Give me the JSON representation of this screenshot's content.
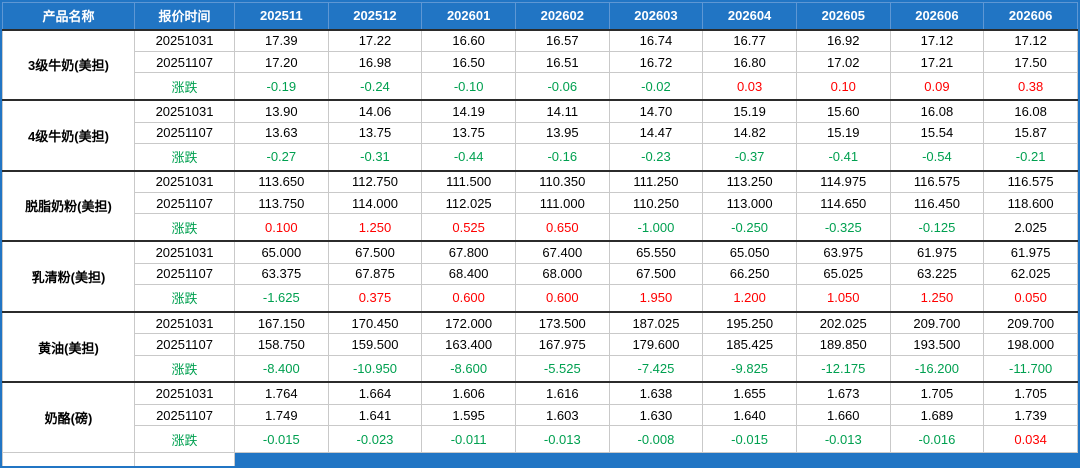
{
  "colors": {
    "header_bg": "#2175C4",
    "header_text": "#FFFFFF",
    "up": "#FF0000",
    "down": "#00A050",
    "neutral": "#000000",
    "grid": "#C9C9C9",
    "divider": "#2B2B2B"
  },
  "chart_data": {
    "type": "table",
    "columns": [
      "产品名称",
      "报价时间",
      "202511",
      "202512",
      "202601",
      "202602",
      "202603",
      "202604",
      "202605",
      "202606",
      "202606"
    ],
    "groups": [
      {
        "product": "3级牛奶(美担)",
        "rows": [
          {
            "label": "20251031",
            "kind": "price",
            "values": [
              "17.39",
              "17.22",
              "16.60",
              "16.57",
              "16.74",
              "16.77",
              "16.92",
              "17.12",
              "17.12"
            ]
          },
          {
            "label": "20251107",
            "kind": "price",
            "values": [
              "17.20",
              "16.98",
              "16.50",
              "16.51",
              "16.72",
              "16.80",
              "17.02",
              "17.21",
              "17.50"
            ]
          },
          {
            "label": "涨跌",
            "kind": "change",
            "values": [
              "-0.19",
              "-0.24",
              "-0.10",
              "-0.06",
              "-0.02",
              "0.03",
              "0.10",
              "0.09",
              "0.38"
            ],
            "color_overrides": {}
          }
        ]
      },
      {
        "product": "4级牛奶(美担)",
        "rows": [
          {
            "label": "20251031",
            "kind": "price",
            "values": [
              "13.90",
              "14.06",
              "14.19",
              "14.11",
              "14.70",
              "15.19",
              "15.60",
              "16.08",
              "16.08"
            ]
          },
          {
            "label": "20251107",
            "kind": "price",
            "values": [
              "13.63",
              "13.75",
              "13.75",
              "13.95",
              "14.47",
              "14.82",
              "15.19",
              "15.54",
              "15.87"
            ]
          },
          {
            "label": "涨跌",
            "kind": "change",
            "values": [
              "-0.27",
              "-0.31",
              "-0.44",
              "-0.16",
              "-0.23",
              "-0.37",
              "-0.41",
              "-0.54",
              "-0.21"
            ],
            "color_overrides": {}
          }
        ]
      },
      {
        "product": "脱脂奶粉(美担)",
        "rows": [
          {
            "label": "20251031",
            "kind": "price",
            "values": [
              "113.650",
              "112.750",
              "111.500",
              "110.350",
              "111.250",
              "113.250",
              "114.975",
              "116.575",
              "116.575"
            ]
          },
          {
            "label": "20251107",
            "kind": "price",
            "values": [
              "113.750",
              "114.000",
              "112.025",
              "111.000",
              "110.250",
              "113.000",
              "114.650",
              "116.450",
              "118.600"
            ]
          },
          {
            "label": "涨跌",
            "kind": "change",
            "values": [
              "0.100",
              "1.250",
              "0.525",
              "0.650",
              "-1.000",
              "-0.250",
              "-0.325",
              "-0.125",
              "2.025"
            ],
            "color_overrides": {
              "8": "neutral"
            }
          }
        ]
      },
      {
        "product": "乳清粉(美担)",
        "rows": [
          {
            "label": "20251031",
            "kind": "price",
            "values": [
              "65.000",
              "67.500",
              "67.800",
              "67.400",
              "65.550",
              "65.050",
              "63.975",
              "61.975",
              "61.975"
            ]
          },
          {
            "label": "20251107",
            "kind": "price",
            "values": [
              "63.375",
              "67.875",
              "68.400",
              "68.000",
              "67.500",
              "66.250",
              "65.025",
              "63.225",
              "62.025"
            ]
          },
          {
            "label": "涨跌",
            "kind": "change",
            "values": [
              "-1.625",
              "0.375",
              "0.600",
              "0.600",
              "1.950",
              "1.200",
              "1.050",
              "1.250",
              "0.050"
            ],
            "color_overrides": {}
          }
        ]
      },
      {
        "product": "黄油(美担)",
        "rows": [
          {
            "label": "20251031",
            "kind": "price",
            "values": [
              "167.150",
              "170.450",
              "172.000",
              "173.500",
              "187.025",
              "195.250",
              "202.025",
              "209.700",
              "209.700"
            ]
          },
          {
            "label": "20251107",
            "kind": "price",
            "values": [
              "158.750",
              "159.500",
              "163.400",
              "167.975",
              "179.600",
              "185.425",
              "189.850",
              "193.500",
              "198.000"
            ]
          },
          {
            "label": "涨跌",
            "kind": "change",
            "values": [
              "-8.400",
              "-10.950",
              "-8.600",
              "-5.525",
              "-7.425",
              "-9.825",
              "-12.175",
              "-16.200",
              "-11.700"
            ],
            "color_overrides": {}
          }
        ]
      },
      {
        "product": "奶酪(磅)",
        "rows": [
          {
            "label": "20251031",
            "kind": "price",
            "values": [
              "1.764",
              "1.664",
              "1.606",
              "1.616",
              "1.638",
              "1.655",
              "1.673",
              "1.705",
              "1.705"
            ]
          },
          {
            "label": "20251107",
            "kind": "price",
            "values": [
              "1.749",
              "1.641",
              "1.595",
              "1.603",
              "1.630",
              "1.640",
              "1.660",
              "1.689",
              "1.739"
            ]
          },
          {
            "label": "涨跌",
            "kind": "change",
            "values": [
              "-0.015",
              "-0.023",
              "-0.011",
              "-0.013",
              "-0.008",
              "-0.015",
              "-0.013",
              "-0.016",
              "0.034"
            ],
            "color_overrides": {}
          }
        ]
      }
    ]
  }
}
